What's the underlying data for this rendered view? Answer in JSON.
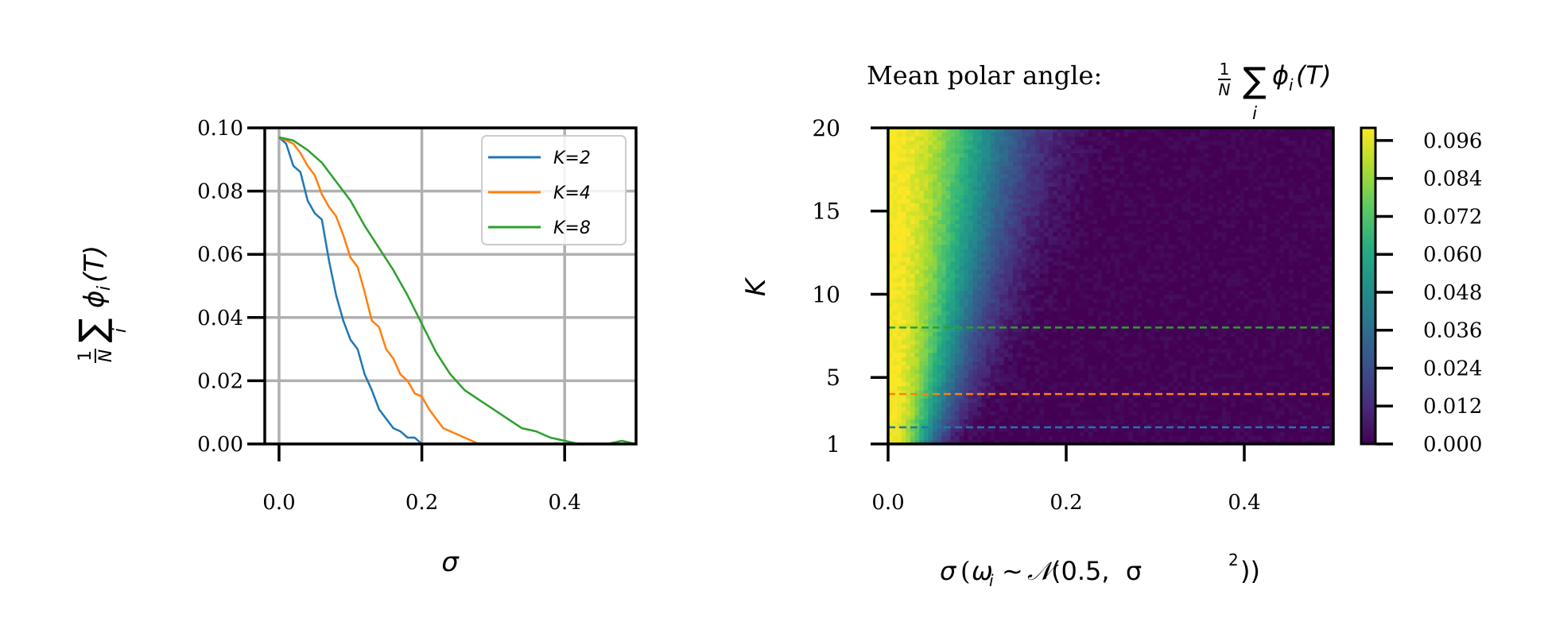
{
  "chart_data": [
    {
      "type": "line",
      "xlabel": "σ",
      "ylabel": "1/N Σ_i φ_i(T)",
      "ylabel_parts": {
        "frac_num": "1",
        "frac_den": "N",
        "sum": "∑",
        "sub": "i",
        "body": "ϕ",
        "body_sub": "i",
        "arg": "(T)"
      },
      "xlim": [
        -0.02,
        0.5
      ],
      "ylim": [
        0,
        0.1
      ],
      "xticks": [
        "0.0",
        "0.2",
        "0.4"
      ],
      "xtick_values": [
        0,
        0.2,
        0.4
      ],
      "yticks": [
        "0.00",
        "0.02",
        "0.04",
        "0.06",
        "0.08",
        "0.10"
      ],
      "ytick_values": [
        0,
        0.02,
        0.04,
        0.06,
        0.08,
        0.1
      ],
      "grid": true,
      "legend_position": "top-right",
      "series": [
        {
          "name": "K = 2",
          "legend_label": "K=2",
          "color": "#1f77b4",
          "x": [
            0,
            0.01,
            0.02,
            0.03,
            0.04,
            0.05,
            0.06,
            0.07,
            0.08,
            0.09,
            0.1,
            0.11,
            0.12,
            0.13,
            0.14,
            0.15,
            0.16,
            0.17,
            0.18,
            0.19,
            0.2
          ],
          "y": [
            0.097,
            0.095,
            0.088,
            0.086,
            0.077,
            0.073,
            0.071,
            0.058,
            0.047,
            0.039,
            0.033,
            0.03,
            0.022,
            0.017,
            0.011,
            0.008,
            0.005,
            0.004,
            0.002,
            0.002,
            0.0
          ]
        },
        {
          "name": "K = 4",
          "legend_label": "K=4",
          "color": "#ff7f0e",
          "x": [
            0,
            0.01,
            0.02,
            0.03,
            0.04,
            0.05,
            0.06,
            0.07,
            0.08,
            0.09,
            0.1,
            0.11,
            0.12,
            0.13,
            0.14,
            0.15,
            0.16,
            0.17,
            0.18,
            0.19,
            0.2,
            0.21,
            0.22,
            0.23,
            0.24,
            0.25,
            0.26,
            0.27,
            0.28
          ],
          "y": [
            0.097,
            0.096,
            0.095,
            0.092,
            0.088,
            0.085,
            0.079,
            0.075,
            0.072,
            0.066,
            0.059,
            0.056,
            0.048,
            0.039,
            0.037,
            0.03,
            0.027,
            0.022,
            0.02,
            0.016,
            0.015,
            0.011,
            0.008,
            0.005,
            0.004,
            0.003,
            0.002,
            0.001,
            0.0
          ]
        },
        {
          "name": "K = 8",
          "legend_label": "K=8",
          "color": "#2ca02c",
          "x": [
            0,
            0.02,
            0.04,
            0.06,
            0.08,
            0.1,
            0.12,
            0.14,
            0.16,
            0.18,
            0.2,
            0.22,
            0.24,
            0.26,
            0.28,
            0.3,
            0.32,
            0.34,
            0.36,
            0.38,
            0.4,
            0.42,
            0.44,
            0.46,
            0.48,
            0.5
          ],
          "y": [
            0.097,
            0.096,
            0.093,
            0.089,
            0.083,
            0.077,
            0.069,
            0.062,
            0.055,
            0.047,
            0.038,
            0.029,
            0.022,
            0.017,
            0.014,
            0.011,
            0.008,
            0.005,
            0.004,
            0.002,
            0.001,
            0.0,
            0.0,
            0.0,
            0.001,
            0.0
          ]
        }
      ]
    },
    {
      "type": "heatmap",
      "title": "Mean polar angle: 1/N Σ_i φ_i(T)",
      "title_parts": {
        "text": "Mean polar angle: ",
        "frac_num": "1",
        "frac_den": "N",
        "sum": "∑",
        "sub": "i",
        "body": "ϕ",
        "body_sub": "i",
        "arg": "(T)"
      },
      "xlabel": "σ (ω_i ~ 𝒩(0.5, σ²))",
      "xlabel_parts": {
        "sigma": "σ",
        "open": "(",
        "omega": "ω",
        "omega_sub": "i",
        "sim": "∼",
        "script_n": "𝒩",
        "args": "(0.5,  σ",
        "sup": "2",
        "close": "))"
      },
      "ylabel": "K",
      "xlim": [
        0,
        0.5
      ],
      "ylim": [
        1,
        20
      ],
      "xticks": [
        "0.0",
        "0.2",
        "0.4"
      ],
      "xtick_values": [
        0,
        0.2,
        0.4
      ],
      "yticks": [
        "1",
        "5",
        "10",
        "15",
        "20"
      ],
      "ytick_values": [
        1,
        5,
        10,
        15,
        20
      ],
      "colormap": "viridis",
      "colorbar_range": [
        0,
        0.1
      ],
      "colorbar_ticks": [
        "0.000",
        "0.012",
        "0.024",
        "0.036",
        "0.048",
        "0.060",
        "0.072",
        "0.084",
        "0.096"
      ],
      "colorbar_tick_values": [
        0,
        0.012,
        0.024,
        0.036,
        0.048,
        0.06,
        0.072,
        0.084,
        0.096
      ],
      "reference_lines": [
        {
          "K": 2,
          "color": "#1f77b4"
        },
        {
          "K": 4,
          "color": "#ff7f0e"
        },
        {
          "K": 8,
          "color": "#2ca02c"
        }
      ]
    }
  ]
}
